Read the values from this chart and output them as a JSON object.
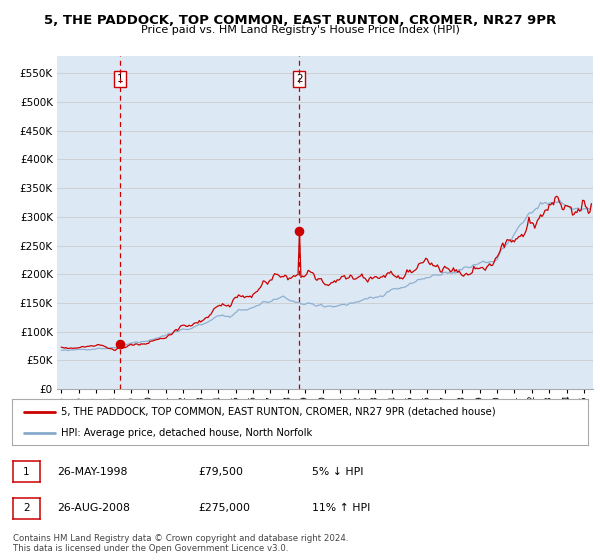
{
  "title": "5, THE PADDOCK, TOP COMMON, EAST RUNTON, CROMER, NR27 9PR",
  "subtitle": "Price paid vs. HM Land Registry's House Price Index (HPI)",
  "ylim": [
    0,
    580000
  ],
  "yticks": [
    0,
    50000,
    100000,
    150000,
    200000,
    250000,
    300000,
    350000,
    400000,
    450000,
    500000,
    550000
  ],
  "ytick_labels": [
    "£0",
    "£50K",
    "£100K",
    "£150K",
    "£200K",
    "£250K",
    "£300K",
    "£350K",
    "£400K",
    "£450K",
    "£500K",
    "£550K"
  ],
  "xlim_start": 1994.75,
  "xlim_end": 2025.5,
  "xtick_years": [
    1995,
    1996,
    1997,
    1998,
    1999,
    2000,
    2001,
    2002,
    2003,
    2004,
    2005,
    2006,
    2007,
    2008,
    2009,
    2010,
    2011,
    2012,
    2013,
    2014,
    2015,
    2016,
    2017,
    2018,
    2019,
    2020,
    2021,
    2022,
    2023,
    2024,
    2025
  ],
  "red_line_color": "#cc0000",
  "blue_line_color": "#88aacc",
  "grid_color": "#cccccc",
  "bg_color": "#dce9f5",
  "sale1_x": 1998.38,
  "sale1_y": 79500,
  "sale2_x": 2008.65,
  "sale2_y": 275000,
  "vline1_x": 1998.38,
  "vline2_x": 2008.65,
  "legend_line1": "5, THE PADDOCK, TOP COMMON, EAST RUNTON, CROMER, NR27 9PR (detached house)",
  "legend_line2": "HPI: Average price, detached house, North Norfolk",
  "table_row1": [
    "1",
    "26-MAY-1998",
    "£79,500",
    "5% ↓ HPI"
  ],
  "table_row2": [
    "2",
    "26-AUG-2008",
    "£275,000",
    "11% ↑ HPI"
  ],
  "footer": "Contains HM Land Registry data © Crown copyright and database right 2024.\nThis data is licensed under the Open Government Licence v3.0."
}
